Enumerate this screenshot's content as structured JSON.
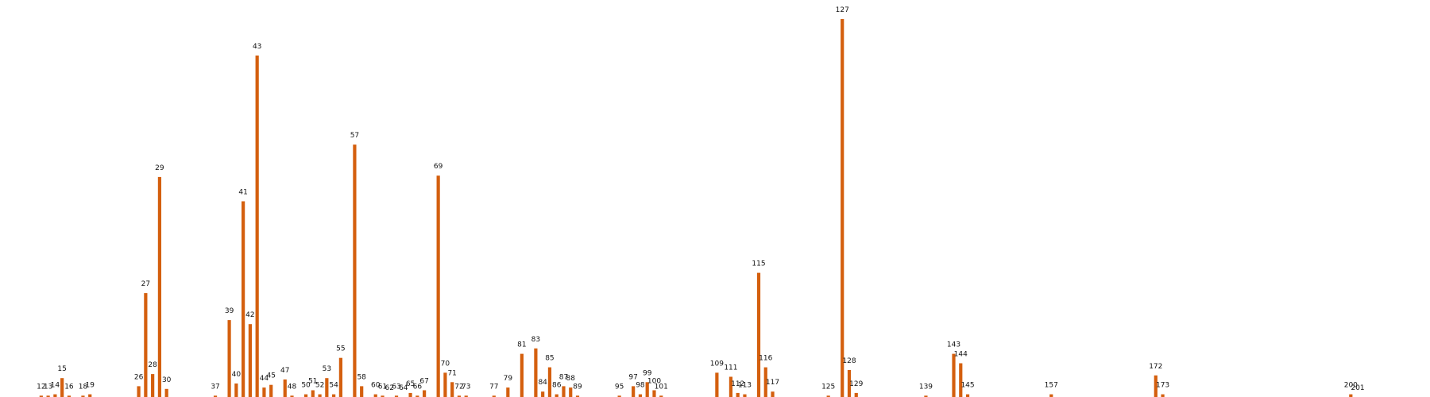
{
  "chart_data": {
    "type": "bar",
    "title": "",
    "xlabel": "",
    "ylabel": "",
    "grid": false,
    "legend": "none",
    "bar_color": "#d45f0e",
    "label_color": "#111111",
    "background": "#ffffff",
    "xlim": [
      7,
      210
    ],
    "ylim": [
      0,
      280
    ],
    "bars": [
      {
        "x": 12,
        "value": 1
      },
      {
        "x": 13,
        "value": 1
      },
      {
        "x": 14,
        "value": 2
      },
      {
        "x": 15,
        "value": 14
      },
      {
        "x": 16,
        "value": 1
      },
      {
        "x": 18,
        "value": 1
      },
      {
        "x": 19,
        "value": 2
      },
      {
        "x": 26,
        "value": 8
      },
      {
        "x": 27,
        "value": 77
      },
      {
        "x": 28,
        "value": 17
      },
      {
        "x": 29,
        "value": 163
      },
      {
        "x": 30,
        "value": 6
      },
      {
        "x": 37,
        "value": 1
      },
      {
        "x": 39,
        "value": 57
      },
      {
        "x": 40,
        "value": 10
      },
      {
        "x": 41,
        "value": 145
      },
      {
        "x": 42,
        "value": 54
      },
      {
        "x": 43,
        "value": 253
      },
      {
        "x": 44,
        "value": 7
      },
      {
        "x": 45,
        "value": 9
      },
      {
        "x": 47,
        "value": 13
      },
      {
        "x": 48,
        "value": 1
      },
      {
        "x": 50,
        "value": 2
      },
      {
        "x": 51,
        "value": 5
      },
      {
        "x": 52,
        "value": 2
      },
      {
        "x": 53,
        "value": 14
      },
      {
        "x": 54,
        "value": 2
      },
      {
        "x": 55,
        "value": 29
      },
      {
        "x": 57,
        "value": 187
      },
      {
        "x": 58,
        "value": 8
      },
      {
        "x": 60,
        "value": 2
      },
      {
        "x": 61,
        "value": 1
      },
      {
        "x": 62,
        "value": 0
      },
      {
        "x": 63,
        "value": 1
      },
      {
        "x": 64,
        "value": 0
      },
      {
        "x": 65,
        "value": 3
      },
      {
        "x": 66,
        "value": 1
      },
      {
        "x": 67,
        "value": 5
      },
      {
        "x": 69,
        "value": 164
      },
      {
        "x": 70,
        "value": 18
      },
      {
        "x": 71,
        "value": 11
      },
      {
        "x": 72,
        "value": 1
      },
      {
        "x": 73,
        "value": 1
      },
      {
        "x": 77,
        "value": 1
      },
      {
        "x": 79,
        "value": 7
      },
      {
        "x": 81,
        "value": 32
      },
      {
        "x": 83,
        "value": 36
      },
      {
        "x": 84,
        "value": 4
      },
      {
        "x": 85,
        "value": 22
      },
      {
        "x": 86,
        "value": 2
      },
      {
        "x": 87,
        "value": 8
      },
      {
        "x": 88,
        "value": 7
      },
      {
        "x": 89,
        "value": 1
      },
      {
        "x": 95,
        "value": 1
      },
      {
        "x": 97,
        "value": 8
      },
      {
        "x": 98,
        "value": 2
      },
      {
        "x": 99,
        "value": 11
      },
      {
        "x": 100,
        "value": 5
      },
      {
        "x": 101,
        "value": 1
      },
      {
        "x": 109,
        "value": 18
      },
      {
        "x": 111,
        "value": 15
      },
      {
        "x": 112,
        "value": 3
      },
      {
        "x": 113,
        "value": 2
      },
      {
        "x": 115,
        "value": 92
      },
      {
        "x": 116,
        "value": 22
      },
      {
        "x": 117,
        "value": 4
      },
      {
        "x": 125,
        "value": 1
      },
      {
        "x": 127,
        "value": 280
      },
      {
        "x": 128,
        "value": 20
      },
      {
        "x": 129,
        "value": 3
      },
      {
        "x": 139,
        "value": 1
      },
      {
        "x": 143,
        "value": 32
      },
      {
        "x": 144,
        "value": 25
      },
      {
        "x": 145,
        "value": 2
      },
      {
        "x": 157,
        "value": 2
      },
      {
        "x": 172,
        "value": 16
      },
      {
        "x": 173,
        "value": 2
      },
      {
        "x": 200,
        "value": 2
      },
      {
        "x": 201,
        "value": 0
      }
    ]
  }
}
